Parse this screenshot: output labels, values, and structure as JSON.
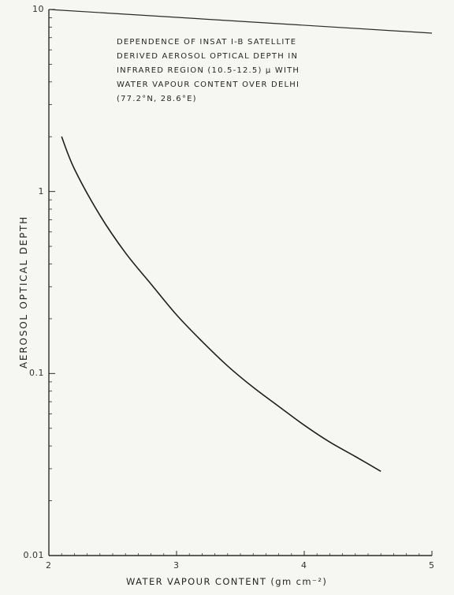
{
  "chart_data": {
    "type": "line",
    "title_lines": [
      "DEPENDENCE OF INSAT I-B SATELLITE",
      "DERIVED AEROSOL OPTICAL DEPTH IN",
      "INFRARED REGION (10.5-12.5) μ WITH",
      "WATER VAPOUR CONTENT OVER DELHI",
      "(77.2°N, 28.6°E)"
    ],
    "xlabel": "WATER VAPOUR CONTENT (gm cm⁻²)",
    "ylabel": "AEROSOL OPTICAL DEPTH",
    "x_scale": "linear",
    "y_scale": "log",
    "xlim": [
      2,
      5
    ],
    "ylim": [
      0.01,
      10
    ],
    "x_ticks": [
      2,
      3,
      4,
      5
    ],
    "x_tick_labels": [
      "2",
      "3",
      "4",
      "5"
    ],
    "y_ticks": [
      0.01,
      0.1,
      1,
      10
    ],
    "y_tick_labels": [
      "0.01",
      "0.1",
      "1",
      "10"
    ],
    "grid": false,
    "series": [
      {
        "color": "#1e1e1e",
        "x": [
          2.1,
          2.2,
          2.4,
          2.6,
          2.8,
          3.0,
          3.2,
          3.4,
          3.6,
          3.8,
          4.0,
          4.2,
          4.4,
          4.6
        ],
        "y": [
          2.0,
          1.33,
          0.74,
          0.46,
          0.31,
          0.21,
          0.15,
          0.11,
          0.084,
          0.066,
          0.052,
          0.042,
          0.035,
          0.029
        ]
      }
    ]
  }
}
